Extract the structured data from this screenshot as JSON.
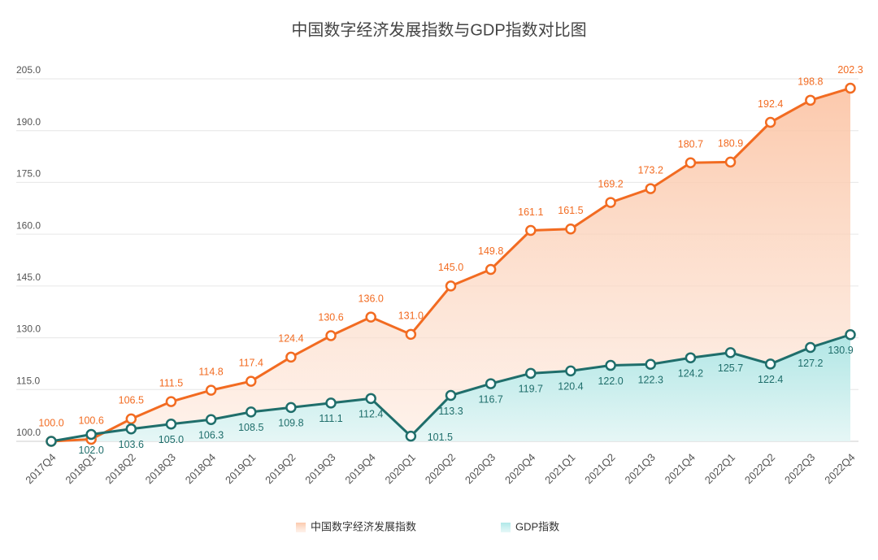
{
  "chart_data": {
    "type": "line",
    "title": "中国数字经济发展指数与GDP指数对比图",
    "categories": [
      "2017Q4",
      "2018Q1",
      "2018Q2",
      "2018Q3",
      "2018Q4",
      "2019Q1",
      "2019Q2",
      "2019Q3",
      "2019Q4",
      "2020Q1",
      "2020Q2",
      "2020Q3",
      "2020Q4",
      "2021Q1",
      "2021Q2",
      "2021Q3",
      "2021Q4",
      "2022Q1",
      "2022Q2",
      "2022Q3",
      "2022Q4"
    ],
    "series": [
      {
        "name": "中国数字经济发展指数",
        "color": "#f26b21",
        "values": [
          100.0,
          100.6,
          106.5,
          111.5,
          114.8,
          117.4,
          124.4,
          130.6,
          136.0,
          131.0,
          145.0,
          149.8,
          161.1,
          161.5,
          169.2,
          173.2,
          180.7,
          180.9,
          192.4,
          198.8,
          202.3
        ],
        "value_labels": [
          "100.0",
          "100.6",
          "106.5",
          "111.5",
          "114.8",
          "117.4",
          "124.4",
          "130.6",
          "136.0",
          "131.0",
          "145.0",
          "149.8",
          "161.1",
          "161.5",
          "169.2",
          "173.2",
          "180.7",
          "180.9",
          "192.4",
          "198.8",
          "202.3"
        ]
      },
      {
        "name": "GDP指数",
        "color": "#1f6e6b",
        "values": [
          100.0,
          102.0,
          103.6,
          105.0,
          106.3,
          108.5,
          109.8,
          111.1,
          112.4,
          101.5,
          113.3,
          116.7,
          119.7,
          120.4,
          122.0,
          122.3,
          124.2,
          125.7,
          122.4,
          127.2,
          130.9
        ],
        "value_labels": [
          null,
          "102.0",
          "103.6",
          "105.0",
          "106.3",
          "108.5",
          "109.8",
          "111.1",
          "112.4",
          "101.5",
          "113.3",
          "116.7",
          "119.7",
          "120.4",
          "122.0",
          "122.3",
          "124.2",
          "125.7",
          "122.4",
          "127.2",
          "130.9"
        ]
      }
    ],
    "ylim": [
      100,
      205
    ],
    "yticks": [
      {
        "value": 100,
        "label": "100.0"
      },
      {
        "value": 115,
        "label": "115.0"
      },
      {
        "value": 130,
        "label": "130.0"
      },
      {
        "value": 145,
        "label": "145.0"
      },
      {
        "value": 160,
        "label": "160.0"
      },
      {
        "value": 175,
        "label": "175.0"
      },
      {
        "value": 190,
        "label": "190.0"
      },
      {
        "value": 205,
        "label": "205.0"
      }
    ],
    "grid": true,
    "legend": "bottom"
  }
}
